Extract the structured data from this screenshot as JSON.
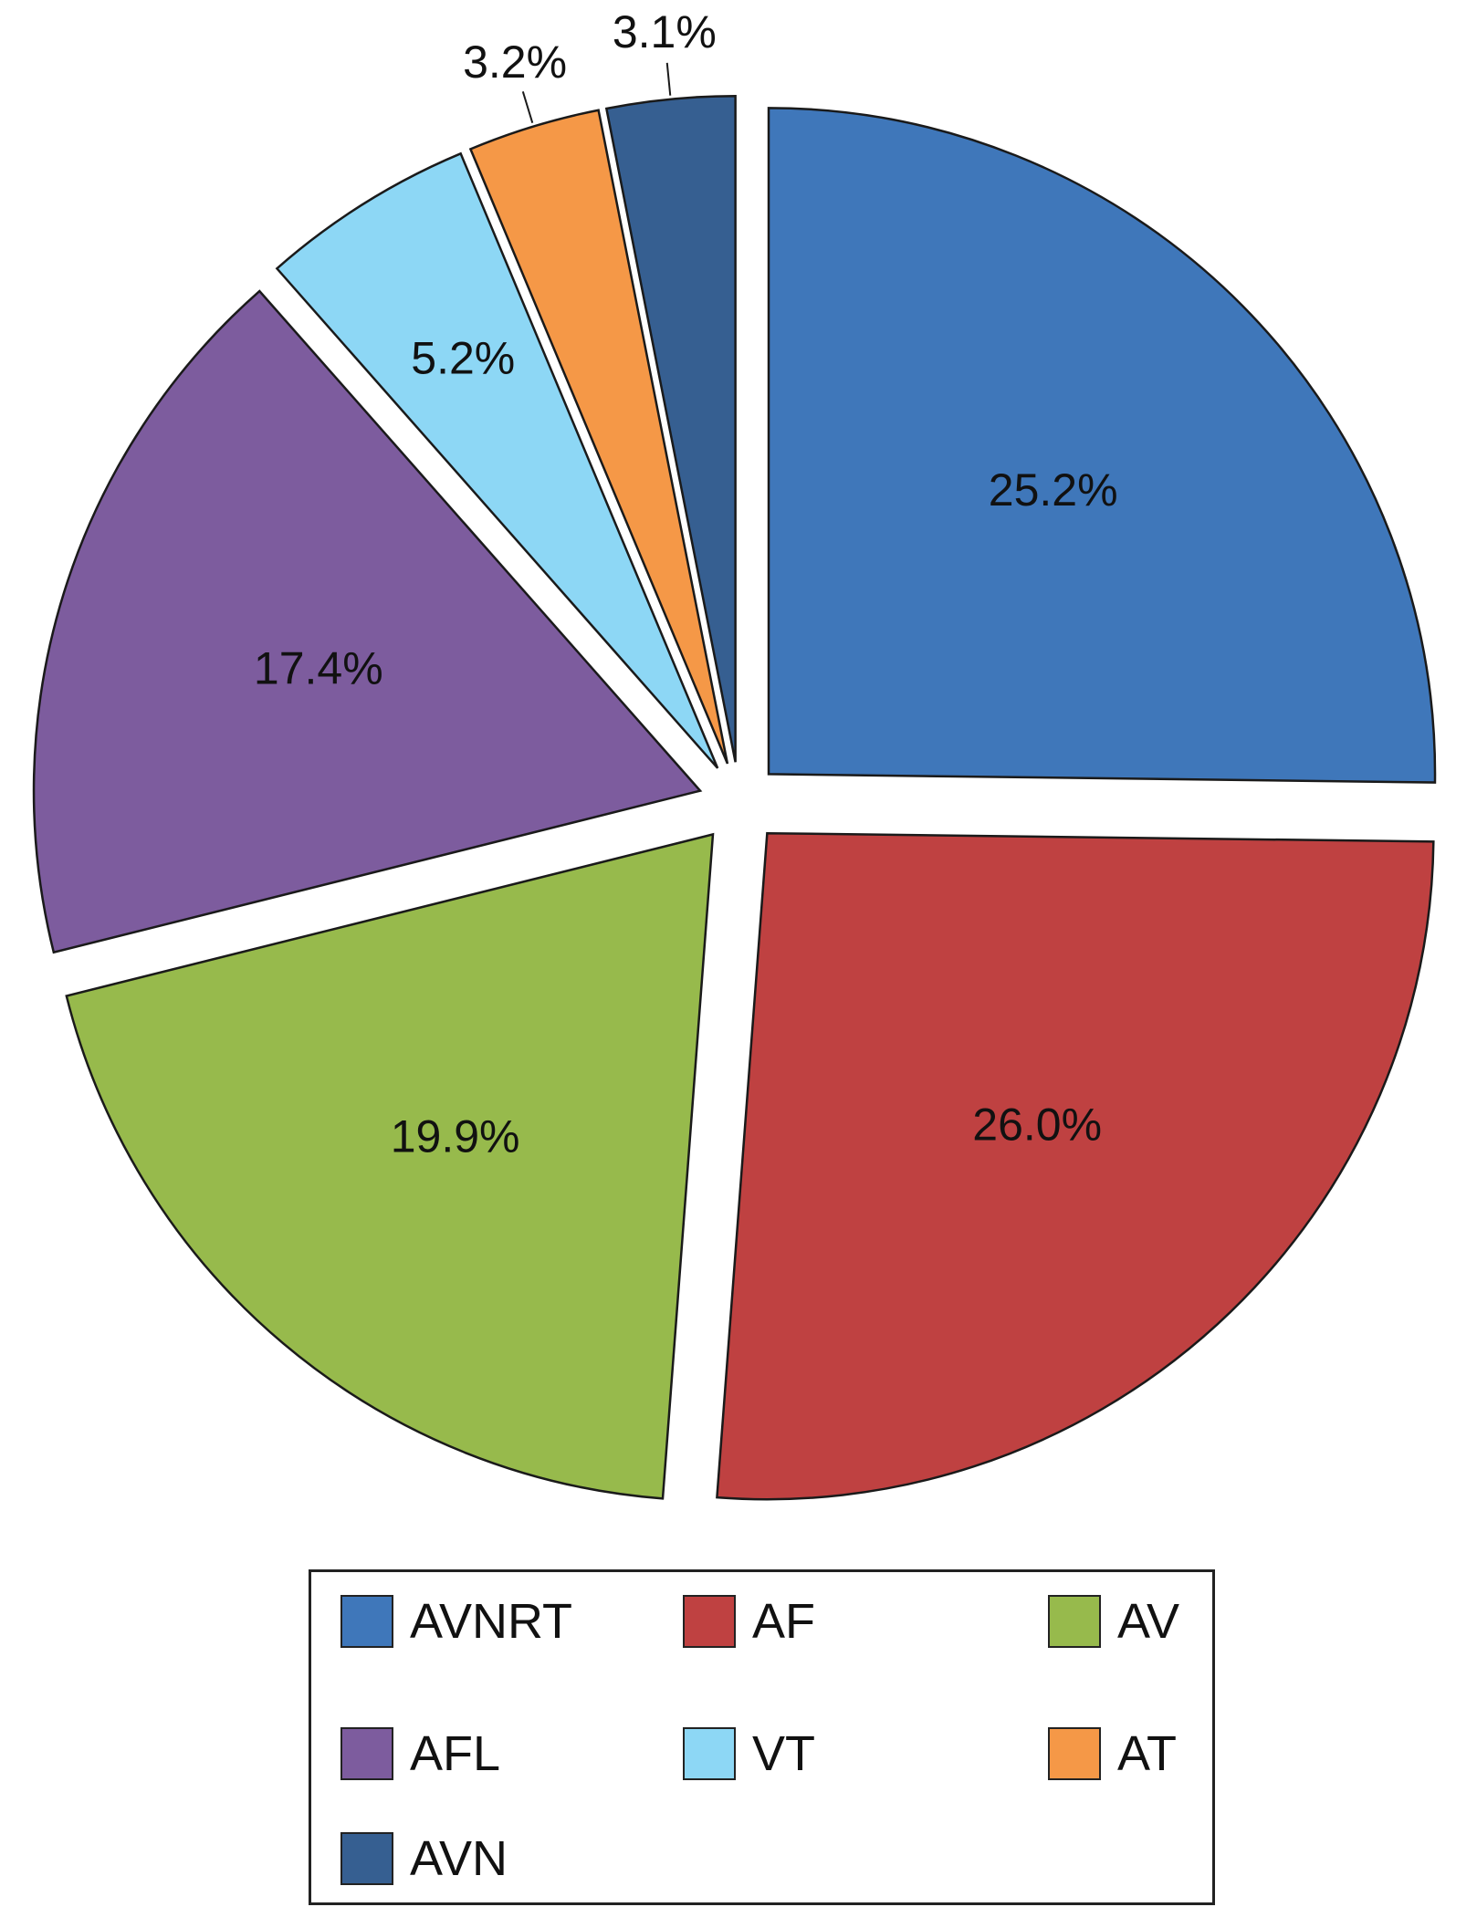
{
  "chart_data": {
    "type": "pie",
    "slices": [
      {
        "label": "AVNRT",
        "value": 25.2,
        "display": "25.2%",
        "color": "#3F77BA"
      },
      {
        "label": "AF",
        "value": 26.0,
        "display": "26.0%",
        "color": "#BF4141"
      },
      {
        "label": "AV",
        "value": 19.9,
        "display": "19.9%",
        "color": "#97BA4C"
      },
      {
        "label": "AFL",
        "value": 17.4,
        "display": "17.4%",
        "color": "#7D5C9E"
      },
      {
        "label": "VT",
        "value": 5.2,
        "display": "5.2%",
        "color": "#8DD7F5"
      },
      {
        "label": "AT",
        "value": 3.2,
        "display": "3.2%",
        "color": "#F59847"
      },
      {
        "label": "AVN",
        "value": 3.1,
        "display": "3.1%",
        "color": "#365F91"
      }
    ],
    "exploded": true,
    "legend_position": "bottom"
  }
}
